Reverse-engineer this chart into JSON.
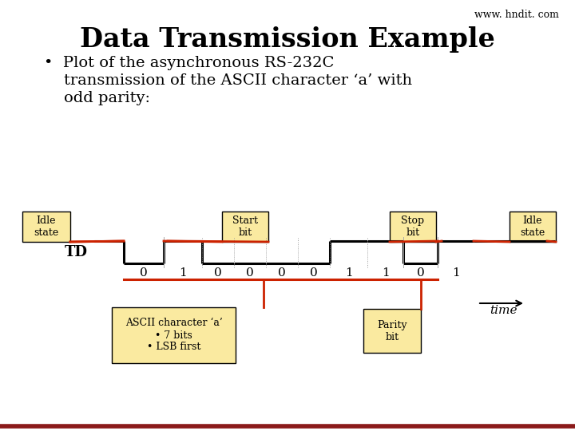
{
  "title": "Data Transmission Example",
  "watermark": "www. hndit. com",
  "bullet_line1": "•  Plot of the asynchronous RS-232C",
  "bullet_line2": "    transmission of the ASCII character ‘a’ with",
  "bullet_line3": "    odd parity:",
  "bg_color": "#ffffff",
  "title_color": "#000000",
  "signal_color": "#000000",
  "annotation_color": "#cc2200",
  "box_fill": "#faeaa0",
  "box_edge": "#000000",
  "bottom_line_color": "#8b1a1a",
  "bits": [
    0,
    1,
    0,
    0,
    0,
    0,
    1,
    1,
    0,
    1
  ],
  "bit_labels": [
    "0",
    "1",
    "0",
    "0",
    "0",
    "0",
    "1",
    "1",
    "0",
    "1"
  ],
  "time_label": "time",
  "ascii_box_text": "ASCII character ‘a’\n• 7 bits\n• LSB first",
  "parity_box_text": "Parity\nbit",
  "idle_left_text": "Idle\nstate",
  "start_bit_text": "Start\nbit",
  "stop_bit_text": "Stop\nbit",
  "idle_right_text": "Idle\nstate",
  "td_label": "TD"
}
